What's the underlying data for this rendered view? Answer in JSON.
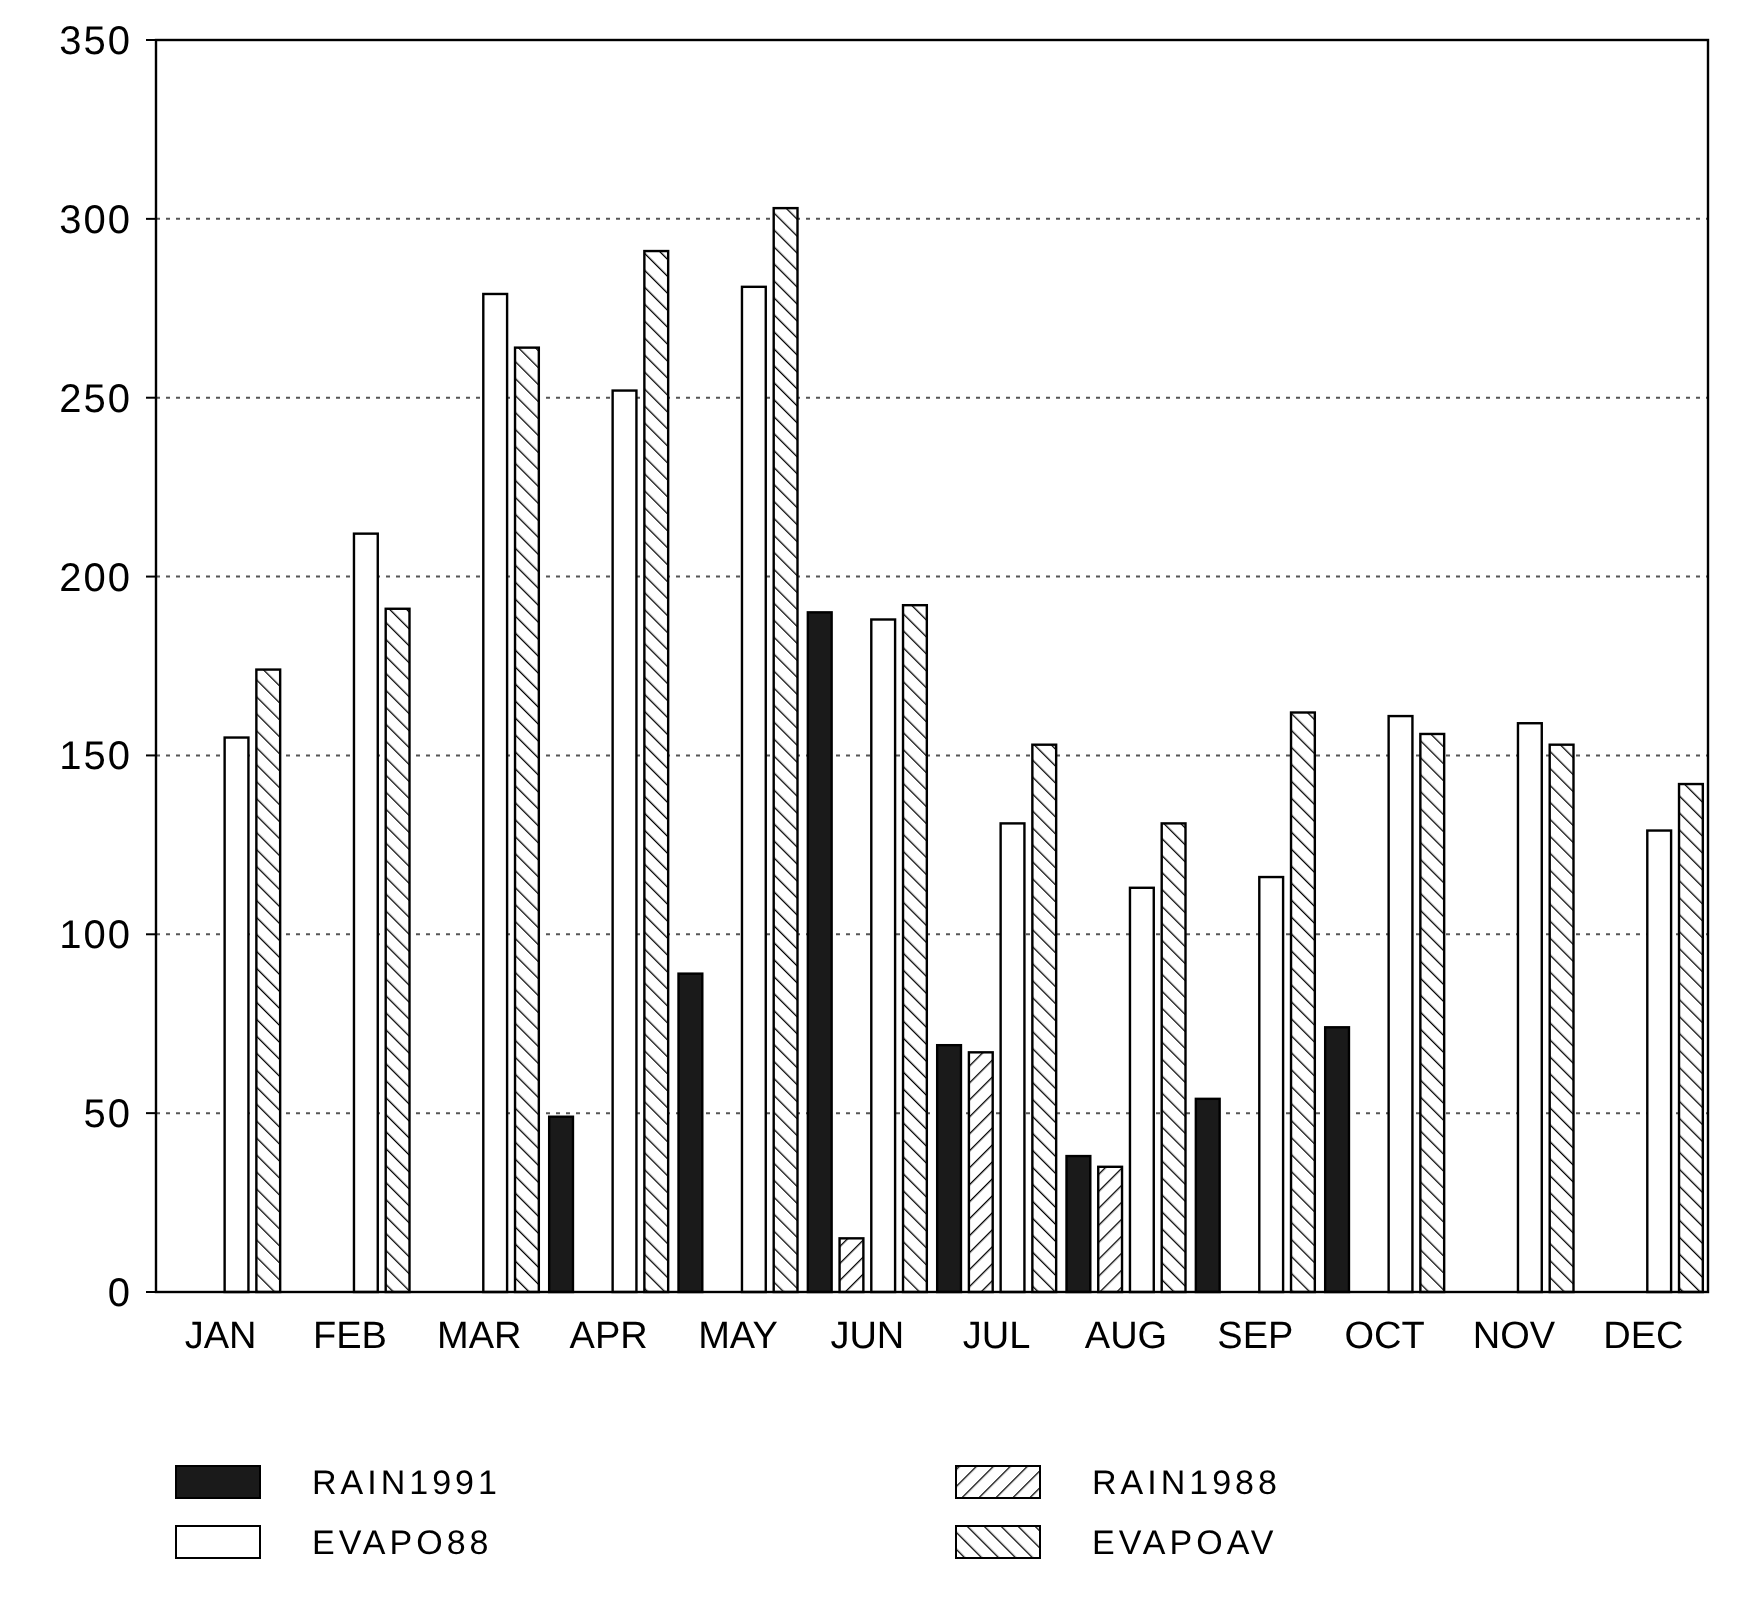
{
  "chart_data": {
    "type": "bar",
    "categories": [
      "JAN",
      "FEB",
      "MAR",
      "APR",
      "MAY",
      "JUN",
      "JUL",
      "AUG",
      "SEP",
      "OCT",
      "NOV",
      "DEC"
    ],
    "series": [
      {
        "name": "RAIN1991",
        "color": "#1a1a1a",
        "values": [
          null,
          null,
          null,
          49,
          89,
          190,
          69,
          38,
          54,
          74,
          null,
          null
        ]
      },
      {
        "name": "RAIN1988",
        "color": "#000000",
        "values": [
          null,
          null,
          null,
          null,
          null,
          15,
          67,
          35,
          null,
          null,
          null,
          null
        ]
      },
      {
        "name": "EVAPO88",
        "color": "#ffffff",
        "values": [
          155,
          212,
          279,
          252,
          281,
          188,
          131,
          113,
          116,
          161,
          159,
          129
        ]
      },
      {
        "name": "EVAPOAV",
        "color": "#000000",
        "values": [
          174,
          191,
          264,
          291,
          303,
          192,
          153,
          131,
          162,
          156,
          153,
          142
        ]
      }
    ],
    "ylim": [
      0,
      350
    ],
    "yticks": [
      0,
      50,
      100,
      150,
      200,
      250,
      300,
      350
    ],
    "grid": "y",
    "legend": "bottom"
  }
}
